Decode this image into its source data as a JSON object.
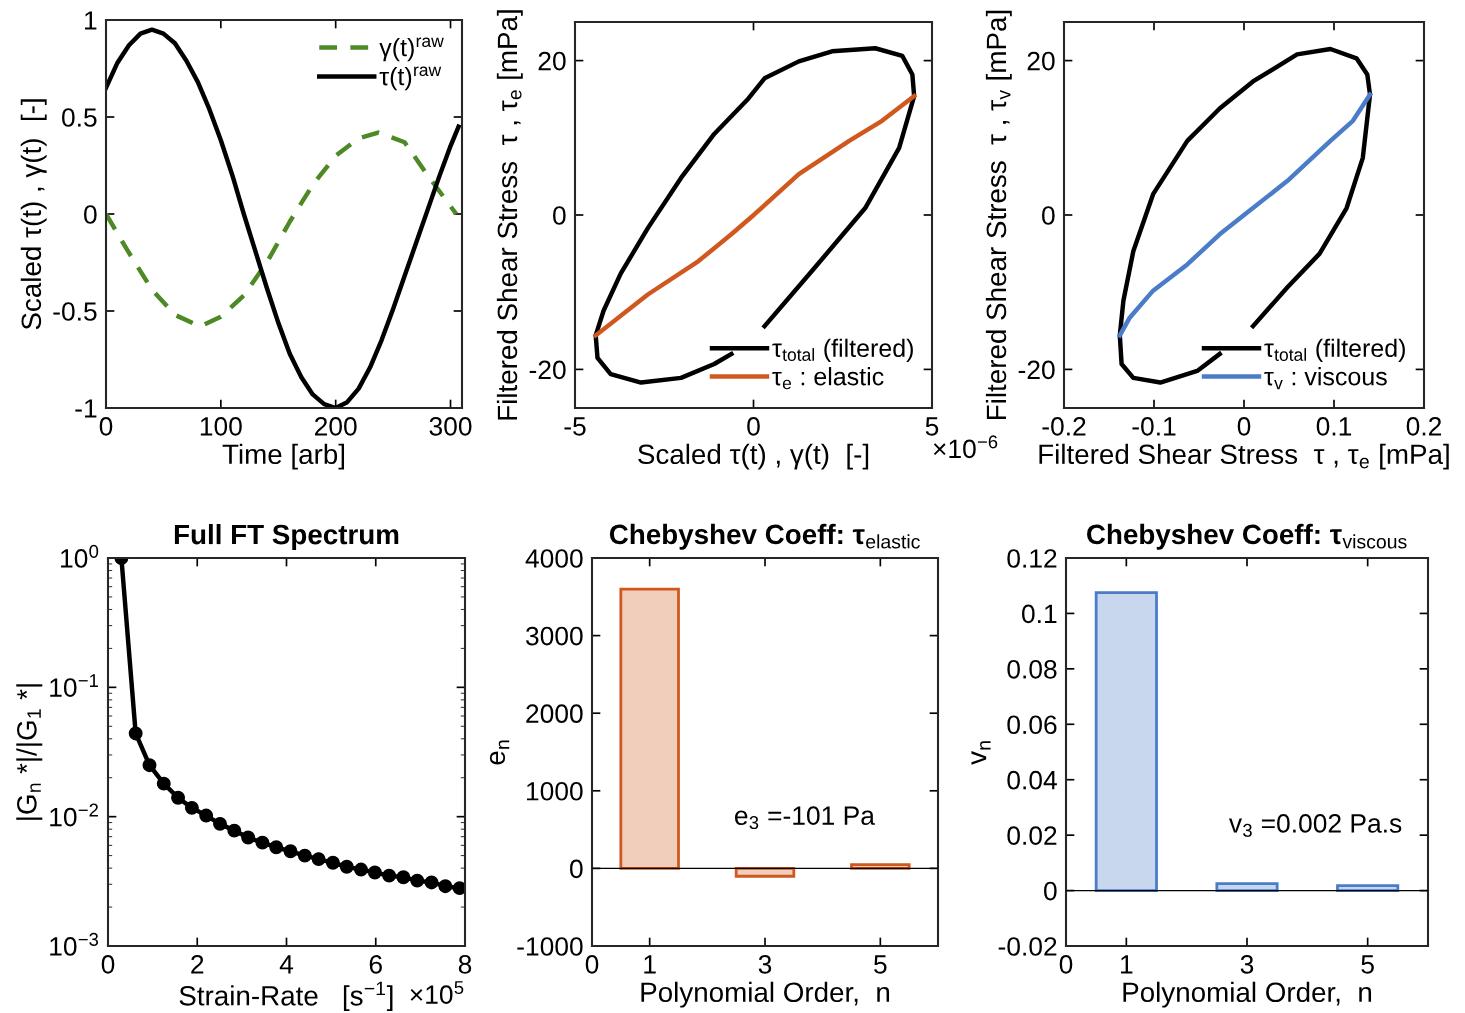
{
  "chart_data": [
    {
      "type": "line",
      "xlabel": "Time [arb]",
      "ylabel": "Scaled τ(t) , γ(t)  [-]",
      "xlim": [
        0,
        310
      ],
      "xticks": [
        0,
        100,
        200,
        300
      ],
      "ylim": [
        -1,
        1
      ],
      "yticks": [
        -1,
        -0.5,
        0,
        0.5,
        1
      ],
      "legend": "top right",
      "grid": false,
      "series": [
        {
          "name": "γ(t)$^{raw}$",
          "color": "#4d8a26",
          "line_style": "dashed",
          "x": [
            0,
            20,
            40,
            60,
            82,
            100,
            120,
            140,
            160,
            180,
            200,
            220,
            237,
            260,
            280,
            295,
            305
          ],
          "values": [
            0,
            -0.2,
            -0.39,
            -0.52,
            -0.58,
            -0.53,
            -0.42,
            -0.25,
            -0.04,
            0.15,
            0.3,
            0.39,
            0.42,
            0.37,
            0.2,
            0.08,
            0.0
          ]
        },
        {
          "name": "τ(t)$^{raw}$",
          "color": "#000000",
          "line_style": "solid",
          "x": [
            0,
            10,
            20,
            30,
            40,
            50,
            60,
            70,
            80,
            90,
            100,
            110,
            120,
            130,
            140,
            150,
            160,
            170,
            180,
            190,
            200,
            210,
            220,
            230,
            240,
            250,
            260,
            270,
            280,
            290,
            300,
            307
          ],
          "values": [
            0.65,
            0.78,
            0.87,
            0.93,
            0.95,
            0.93,
            0.88,
            0.79,
            0.68,
            0.54,
            0.38,
            0.2,
            0.0,
            -0.19,
            -0.38,
            -0.56,
            -0.72,
            -0.84,
            -0.93,
            -0.98,
            -1.0,
            -0.97,
            -0.9,
            -0.79,
            -0.65,
            -0.49,
            -0.32,
            -0.15,
            0.02,
            0.19,
            0.35,
            0.45
          ]
        }
      ]
    },
    {
      "type": "line",
      "xlabel": "Scaled τ(t) , γ(t)  [-]",
      "ylabel": "Filtered Shear Stress  τ , τ$_{e}$ [mPa]",
      "xlim": [
        -5,
        5
      ],
      "xticks": [
        -5,
        0,
        5
      ],
      "ylim": [
        -25,
        25
      ],
      "yticks": [
        -20,
        0,
        20
      ],
      "legend": "bottom right",
      "grid": false,
      "annotations": [
        "×10$^{−6}$"
      ],
      "series": [
        {
          "name": "τ$_{total}$ (filtered)",
          "color": "#000000",
          "x": [
            0.31,
            1.72,
            3.13,
            4.08,
            4.5,
            4.45,
            4.17,
            3.41,
            2.2,
            1.27,
            0.31,
            -0.14,
            -1.1,
            -2.03,
            -2.96,
            -3.72,
            -4.2,
            -4.42,
            -4.37,
            -4.0,
            -3.15,
            -2.03,
            -1.1,
            -0.62
          ],
          "values": [
            -14.4,
            -6.8,
            0.9,
            8.7,
            15.4,
            18.2,
            20.6,
            21.6,
            21.2,
            19.9,
            17.7,
            15.1,
            10.5,
            4.8,
            -1.7,
            -7.6,
            -12.4,
            -15.6,
            -18.5,
            -20.6,
            -21.7,
            -21.1,
            -19.3,
            -18.0
          ]
        },
        {
          "name": "τ$_{e}$ : elastic",
          "color": "#d0581f",
          "x": [
            -4.42,
            -2.96,
            -1.55,
            -0.62,
            0.03,
            1.27,
            2.68,
            3.6,
            4.5
          ],
          "values": [
            -15.6,
            -10.3,
            -6.0,
            -2.5,
            0.1,
            5.3,
            9.6,
            12.2,
            15.4
          ]
        }
      ]
    },
    {
      "type": "line",
      "xlabel": "Filtered Shear Stress  τ , τ$_{e}$ [mPa]",
      "ylabel": "Filtered Shear Stress  τ , τ$_{v}$ [mPa]",
      "xlim": [
        -0.2,
        0.2
      ],
      "xticks": [
        -0.2,
        -0.1,
        0,
        0.1,
        0.2
      ],
      "ylim": [
        -25,
        25
      ],
      "yticks": [
        -20,
        0,
        20
      ],
      "legend": "bottom right",
      "grid": false,
      "series": [
        {
          "name": "τ$_{total}$ (filtered)",
          "color": "#000000",
          "x": [
            0.01,
            0.048,
            0.084,
            0.114,
            0.132,
            0.14,
            0.137,
            0.125,
            0.096,
            0.059,
            0.01,
            -0.027,
            -0.063,
            -0.101,
            -0.123,
            -0.134,
            -0.138,
            -0.136,
            -0.123,
            -0.093,
            -0.052,
            -0.027
          ],
          "values": [
            -14.4,
            -9.4,
            -5.0,
            0.9,
            7.4,
            15.6,
            18.2,
            20.3,
            21.5,
            20.8,
            17.3,
            13.8,
            9.6,
            2.7,
            -4.7,
            -11.1,
            -15.6,
            -19.3,
            -21.1,
            -21.7,
            -20.2,
            -18.0
          ]
        },
        {
          "name": "τ$_{v}$ : viscous",
          "color": "#4a7cc8",
          "x": [
            -0.138,
            -0.127,
            -0.101,
            -0.063,
            -0.027,
            -0.001,
            0.048,
            0.096,
            0.121,
            0.14
          ],
          "values": [
            -15.6,
            -13.3,
            -9.8,
            -6.4,
            -2.5,
            -0.1,
            4.4,
            9.6,
            12.2,
            15.6
          ]
        }
      ]
    },
    {
      "type": "line",
      "title": "Full FT Spectrum",
      "xlabel": "Strain-Rate   [s$^{−1}$]",
      "ylabel": "|G$_{n}$ *|/|G$_{1}$ *|",
      "log": "y",
      "marker": "circle",
      "grid": false,
      "xlim": [
        0,
        8
      ],
      "xticks": [
        0,
        2,
        4,
        6,
        8
      ],
      "ylim": [
        0.001,
        1
      ],
      "yticks": [
        {
          "value": 0.001,
          "label": "10$^{−3}$"
        },
        {
          "value": 0.01,
          "label": "10$^{−2}$"
        },
        {
          "value": 0.1,
          "label": "10$^{−1}$"
        },
        {
          "value": 1,
          "label": "10$^{0}$"
        }
      ],
      "annotations": [
        "×10$^{5}$"
      ],
      "series": [
        {
          "color": "#000000",
          "x": [
            0.3,
            0.62,
            0.93,
            1.25,
            1.57,
            1.88,
            2.2,
            2.51,
            2.83,
            3.14,
            3.46,
            3.77,
            4.09,
            4.41,
            4.72,
            5.04,
            5.35,
            5.67,
            5.98,
            6.3,
            6.62,
            6.93,
            7.25,
            7.56,
            7.88
          ],
          "values": [
            1.0,
            0.044,
            0.025,
            0.018,
            0.014,
            0.0117,
            0.0102,
            0.0088,
            0.0078,
            0.0069,
            0.0063,
            0.0058,
            0.0054,
            0.005,
            0.0047,
            0.0044,
            0.0041,
            0.0039,
            0.0037,
            0.0035,
            0.0034,
            0.0032,
            0.0031,
            0.0029,
            0.0028
          ]
        }
      ]
    },
    {
      "type": "bar",
      "title": "Chebyshev Coeff: τ$_{elastic}$",
      "xlabel": "Polynomial Order,  n",
      "ylabel": "e$_{n}$",
      "grid": false,
      "x": [
        1,
        3,
        5
      ],
      "values": [
        3600,
        -101,
        50
      ],
      "color": "#d0581f",
      "xlim": [
        0,
        6
      ],
      "xticks": [
        0,
        1,
        3,
        5
      ],
      "ylim": [
        -1000,
        4000
      ],
      "yticks": [
        -1000,
        0,
        1000,
        2000,
        3000,
        4000
      ],
      "ref_lines": [
        {
          "axis": "y",
          "value": 0,
          "color": "#000000"
        }
      ],
      "annotations": [
        "e$_{3}$ =-101 Pa"
      ]
    },
    {
      "type": "bar",
      "title": "Chebyshev Coeff: τ$_{viscous}$",
      "xlabel": "Polynomial Order,  n",
      "ylabel": "v$_{n}$",
      "grid": false,
      "x": [
        1,
        3,
        5
      ],
      "values": [
        0.1075,
        0.0025,
        0.0018
      ],
      "color": "#4a7cc8",
      "xlim": [
        0,
        6
      ],
      "xticks": [
        0,
        1,
        3,
        5
      ],
      "ylim": [
        -0.02,
        0.12
      ],
      "yticks": [
        -0.02,
        0,
        0.02,
        0.04,
        0.06,
        0.08,
        0.1,
        0.12
      ],
      "ref_lines": [
        {
          "axis": "y",
          "value": 0,
          "color": "#000000"
        }
      ],
      "annotations": [
        "v$_{3}$ =0.002 Pa.s"
      ]
    }
  ]
}
